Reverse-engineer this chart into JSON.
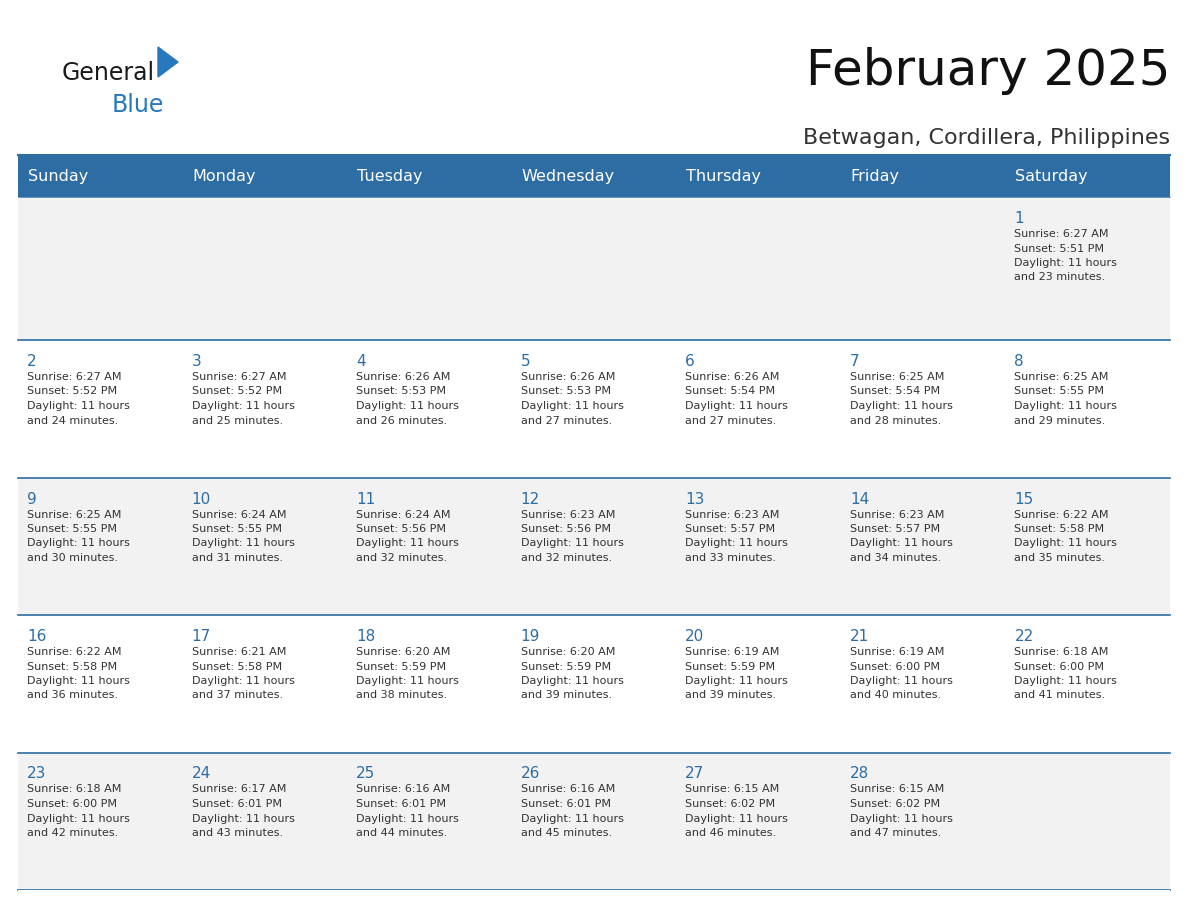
{
  "title": "February 2025",
  "subtitle": "Betwagan, Cordillera, Philippines",
  "days_of_week": [
    "Sunday",
    "Monday",
    "Tuesday",
    "Wednesday",
    "Thursday",
    "Friday",
    "Saturday"
  ],
  "header_bg": "#2E6DA4",
  "header_text": "#FFFFFF",
  "cell_bg_odd": "#F2F2F2",
  "cell_bg_even": "#FFFFFF",
  "border_color": "#2E6DA4",
  "title_color": "#111111",
  "subtitle_color": "#333333",
  "day_num_color": "#2E6DA4",
  "cell_text_color": "#333333",
  "logo_general_color": "#1a1a1a",
  "logo_blue_color": "#2878BE",
  "calendar_data": [
    {
      "day": 1,
      "col": 6,
      "row": 0,
      "sunrise": "6:27 AM",
      "sunset": "5:51 PM",
      "daylight": "11 hours and 23 minutes."
    },
    {
      "day": 2,
      "col": 0,
      "row": 1,
      "sunrise": "6:27 AM",
      "sunset": "5:52 PM",
      "daylight": "11 hours and 24 minutes."
    },
    {
      "day": 3,
      "col": 1,
      "row": 1,
      "sunrise": "6:27 AM",
      "sunset": "5:52 PM",
      "daylight": "11 hours and 25 minutes."
    },
    {
      "day": 4,
      "col": 2,
      "row": 1,
      "sunrise": "6:26 AM",
      "sunset": "5:53 PM",
      "daylight": "11 hours and 26 minutes."
    },
    {
      "day": 5,
      "col": 3,
      "row": 1,
      "sunrise": "6:26 AM",
      "sunset": "5:53 PM",
      "daylight": "11 hours and 27 minutes."
    },
    {
      "day": 6,
      "col": 4,
      "row": 1,
      "sunrise": "6:26 AM",
      "sunset": "5:54 PM",
      "daylight": "11 hours and 27 minutes."
    },
    {
      "day": 7,
      "col": 5,
      "row": 1,
      "sunrise": "6:25 AM",
      "sunset": "5:54 PM",
      "daylight": "11 hours and 28 minutes."
    },
    {
      "day": 8,
      "col": 6,
      "row": 1,
      "sunrise": "6:25 AM",
      "sunset": "5:55 PM",
      "daylight": "11 hours and 29 minutes."
    },
    {
      "day": 9,
      "col": 0,
      "row": 2,
      "sunrise": "6:25 AM",
      "sunset": "5:55 PM",
      "daylight": "11 hours and 30 minutes."
    },
    {
      "day": 10,
      "col": 1,
      "row": 2,
      "sunrise": "6:24 AM",
      "sunset": "5:55 PM",
      "daylight": "11 hours and 31 minutes."
    },
    {
      "day": 11,
      "col": 2,
      "row": 2,
      "sunrise": "6:24 AM",
      "sunset": "5:56 PM",
      "daylight": "11 hours and 32 minutes."
    },
    {
      "day": 12,
      "col": 3,
      "row": 2,
      "sunrise": "6:23 AM",
      "sunset": "5:56 PM",
      "daylight": "11 hours and 32 minutes."
    },
    {
      "day": 13,
      "col": 4,
      "row": 2,
      "sunrise": "6:23 AM",
      "sunset": "5:57 PM",
      "daylight": "11 hours and 33 minutes."
    },
    {
      "day": 14,
      "col": 5,
      "row": 2,
      "sunrise": "6:23 AM",
      "sunset": "5:57 PM",
      "daylight": "11 hours and 34 minutes."
    },
    {
      "day": 15,
      "col": 6,
      "row": 2,
      "sunrise": "6:22 AM",
      "sunset": "5:58 PM",
      "daylight": "11 hours and 35 minutes."
    },
    {
      "day": 16,
      "col": 0,
      "row": 3,
      "sunrise": "6:22 AM",
      "sunset": "5:58 PM",
      "daylight": "11 hours and 36 minutes."
    },
    {
      "day": 17,
      "col": 1,
      "row": 3,
      "sunrise": "6:21 AM",
      "sunset": "5:58 PM",
      "daylight": "11 hours and 37 minutes."
    },
    {
      "day": 18,
      "col": 2,
      "row": 3,
      "sunrise": "6:20 AM",
      "sunset": "5:59 PM",
      "daylight": "11 hours and 38 minutes."
    },
    {
      "day": 19,
      "col": 3,
      "row": 3,
      "sunrise": "6:20 AM",
      "sunset": "5:59 PM",
      "daylight": "11 hours and 39 minutes."
    },
    {
      "day": 20,
      "col": 4,
      "row": 3,
      "sunrise": "6:19 AM",
      "sunset": "5:59 PM",
      "daylight": "11 hours and 39 minutes."
    },
    {
      "day": 21,
      "col": 5,
      "row": 3,
      "sunrise": "6:19 AM",
      "sunset": "6:00 PM",
      "daylight": "11 hours and 40 minutes."
    },
    {
      "day": 22,
      "col": 6,
      "row": 3,
      "sunrise": "6:18 AM",
      "sunset": "6:00 PM",
      "daylight": "11 hours and 41 minutes."
    },
    {
      "day": 23,
      "col": 0,
      "row": 4,
      "sunrise": "6:18 AM",
      "sunset": "6:00 PM",
      "daylight": "11 hours and 42 minutes."
    },
    {
      "day": 24,
      "col": 1,
      "row": 4,
      "sunrise": "6:17 AM",
      "sunset": "6:01 PM",
      "daylight": "11 hours and 43 minutes."
    },
    {
      "day": 25,
      "col": 2,
      "row": 4,
      "sunrise": "6:16 AM",
      "sunset": "6:01 PM",
      "daylight": "11 hours and 44 minutes."
    },
    {
      "day": 26,
      "col": 3,
      "row": 4,
      "sunrise": "6:16 AM",
      "sunset": "6:01 PM",
      "daylight": "11 hours and 45 minutes."
    },
    {
      "day": 27,
      "col": 4,
      "row": 4,
      "sunrise": "6:15 AM",
      "sunset": "6:02 PM",
      "daylight": "11 hours and 46 minutes."
    },
    {
      "day": 28,
      "col": 5,
      "row": 4,
      "sunrise": "6:15 AM",
      "sunset": "6:02 PM",
      "daylight": "11 hours and 47 minutes."
    }
  ]
}
